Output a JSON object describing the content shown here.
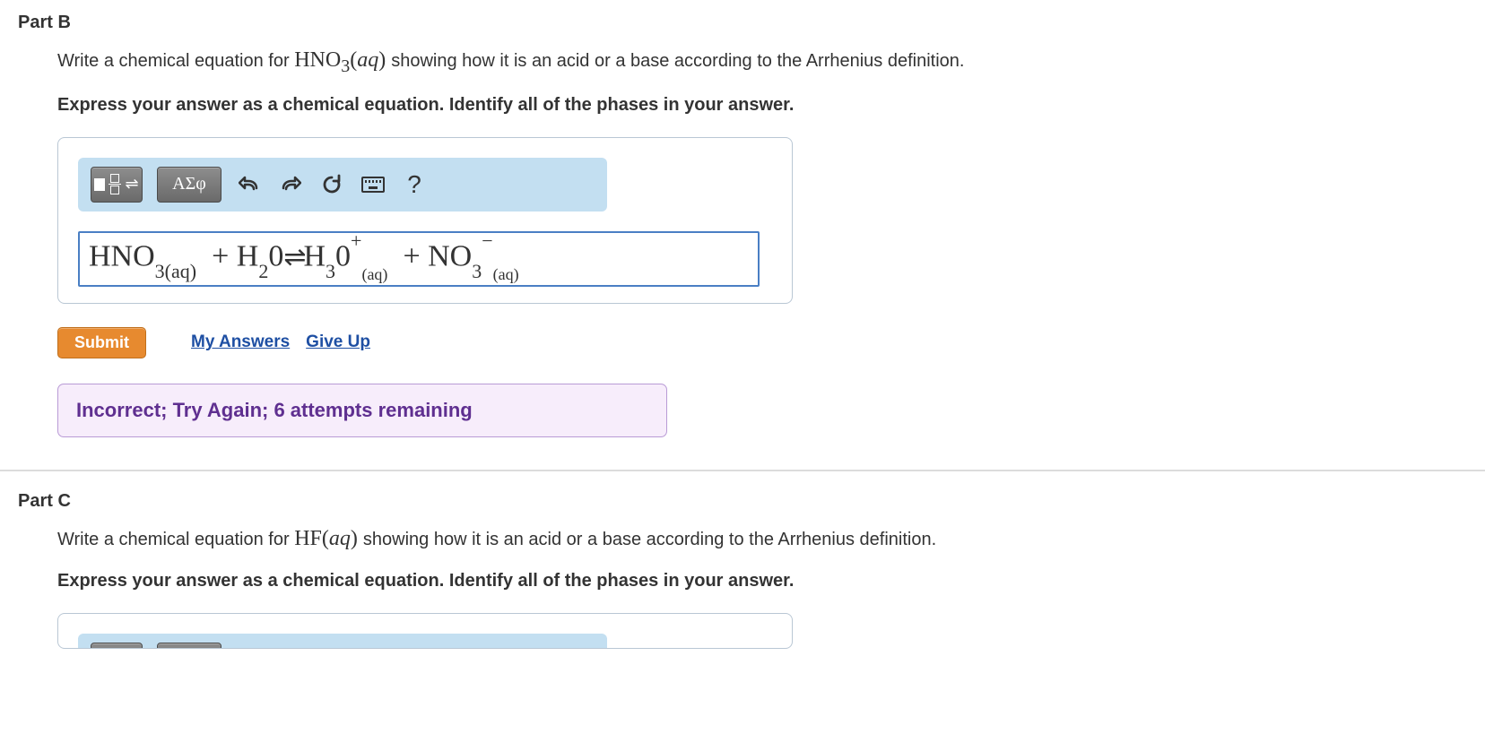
{
  "partB": {
    "header": "Part B",
    "prompt_pre": "Write a chemical equation for ",
    "prompt_formula": "HNO",
    "prompt_formula_sub": "3",
    "prompt_formula_state": "(aq)",
    "prompt_post": " showing how it is an acid or a base according to the Arrhenius definition.",
    "instruction": "Express your answer as a chemical equation. Identify all of the phases in your answer.",
    "toolbar": {
      "greek_label": "ΑΣφ",
      "help_label": "?"
    },
    "equation_html": "HNO<span class='sub'>3(aq)</span> &nbsp;+&nbsp;H<span class='sub'>2</span>0<span class='equil'>⇌</span>H<span class='sub'>3</span>0<span class='sup'>+</span><span class='subsm'>(aq)</span> &nbsp;+&nbsp;NO<span class='sub'>3</span><span class='sup'>&minus;</span><span class='subsm'>(aq)</span>",
    "submit_label": "Submit",
    "my_answers_label": "My Answers",
    "give_up_label": "Give Up",
    "feedback": "Incorrect; Try Again; 6 attempts remaining"
  },
  "partC": {
    "header": "Part C",
    "prompt_pre": "Write a chemical equation for ",
    "prompt_formula": "HF",
    "prompt_formula_state": "(aq)",
    "prompt_post": " showing how it is an acid or a base according to the Arrhenius definition.",
    "instruction": "Express your answer as a chemical equation. Identify all of the phases in your answer."
  },
  "colors": {
    "toolbar_bg": "#c3dff1",
    "tool_btn_bg": "#7a7a7a",
    "submit_bg": "#e78a2f",
    "link_color": "#1e4fa3",
    "feedback_bg": "#f7edfb",
    "feedback_border": "#b99bd6",
    "feedback_text": "#5f2f90",
    "equation_border": "#4a7fc4",
    "box_border": "#b9c7d4"
  }
}
